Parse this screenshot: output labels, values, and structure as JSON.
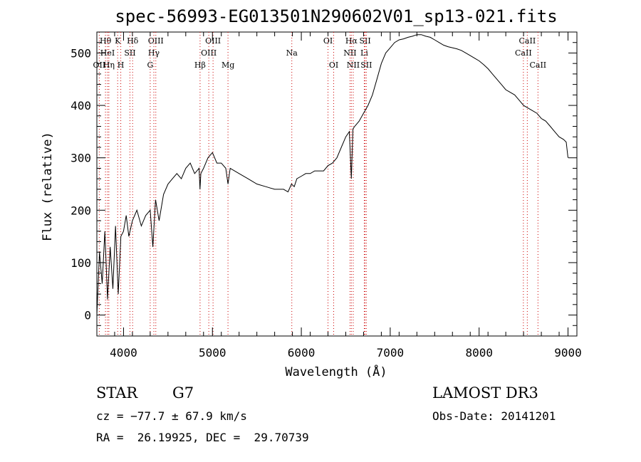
{
  "chart_data": {
    "type": "line",
    "title": "spec-56993-EG013501N290602V01_sp13-021.fits",
    "xlabel": "Wavelength (Å)",
    "ylabel": "Flux (relative)",
    "xlim": [
      3700,
      9100
    ],
    "ylim": [
      -40,
      540
    ],
    "xticks": [
      4000,
      5000,
      6000,
      7000,
      8000,
      9000
    ],
    "yticks": [
      0,
      100,
      200,
      300,
      400,
      500
    ],
    "xtick_labels": [
      "4000",
      "5000",
      "6000",
      "7000",
      "8000",
      "9000"
    ],
    "ytick_labels": [
      "0",
      "100",
      "200",
      "300",
      "400",
      "500"
    ],
    "series": [
      {
        "name": "spectrum",
        "x": [
          3700,
          3730,
          3760,
          3790,
          3820,
          3850,
          3880,
          3910,
          3940,
          3970,
          4000,
          4030,
          4060,
          4100,
          4150,
          4200,
          4250,
          4300,
          4330,
          4360,
          4400,
          4450,
          4500,
          4550,
          4600,
          4650,
          4700,
          4750,
          4800,
          4850,
          4860,
          4870,
          4900,
          4950,
          5000,
          5050,
          5100,
          5150,
          5175,
          5200,
          5300,
          5400,
          5500,
          5600,
          5700,
          5800,
          5850,
          5890,
          5920,
          5950,
          6000,
          6050,
          6100,
          6150,
          6200,
          6250,
          6300,
          6350,
          6400,
          6450,
          6500,
          6540,
          6563,
          6580,
          6600,
          6650,
          6700,
          6750,
          6800,
          6850,
          6900,
          6950,
          7000,
          7050,
          7100,
          7150,
          7200,
          7250,
          7300,
          7350,
          7400,
          7450,
          7500,
          7550,
          7600,
          7650,
          7700,
          7750,
          7800,
          7850,
          7900,
          7950,
          8000,
          8050,
          8100,
          8150,
          8200,
          8250,
          8300,
          8350,
          8400,
          8450,
          8500,
          8550,
          8600,
          8650,
          8700,
          8750,
          8800,
          8850,
          8900,
          8950,
          8980,
          9000
        ],
        "y": [
          0,
          120,
          60,
          160,
          30,
          130,
          50,
          170,
          40,
          150,
          160,
          190,
          150,
          180,
          200,
          170,
          190,
          200,
          130,
          220,
          180,
          230,
          250,
          260,
          270,
          260,
          280,
          290,
          270,
          280,
          240,
          270,
          280,
          300,
          310,
          290,
          290,
          280,
          250,
          280,
          270,
          260,
          250,
          245,
          240,
          240,
          235,
          250,
          245,
          260,
          265,
          270,
          270,
          275,
          275,
          275,
          285,
          290,
          300,
          320,
          340,
          350,
          260,
          355,
          360,
          370,
          385,
          400,
          420,
          450,
          480,
          500,
          510,
          520,
          525,
          527,
          530,
          532,
          535,
          535,
          532,
          530,
          525,
          520,
          515,
          512,
          510,
          508,
          505,
          500,
          495,
          490,
          485,
          478,
          470,
          460,
          450,
          440,
          430,
          425,
          420,
          410,
          400,
          395,
          390,
          385,
          375,
          370,
          360,
          350,
          340,
          335,
          330,
          300
        ]
      }
    ],
    "lines": [
      {
        "label": "Hθ",
        "x": 3797,
        "row": 1
      },
      {
        "label": "OII",
        "x": 3727,
        "row": 3
      },
      {
        "label": "HeI",
        "x": 3820,
        "row": 2
      },
      {
        "label": "Hη",
        "x": 3835,
        "row": 3
      },
      {
        "label": "K",
        "x": 3934,
        "row": 1
      },
      {
        "label": "H",
        "x": 3969,
        "row": 3
      },
      {
        "label": "SII",
        "x": 4072,
        "row": 2
      },
      {
        "label": "Hδ",
        "x": 4102,
        "row": 1
      },
      {
        "label": "OIII",
        "x": 4363,
        "row": 1
      },
      {
        "label": "Hγ",
        "x": 4341,
        "row": 2
      },
      {
        "label": "G",
        "x": 4300,
        "row": 3
      },
      {
        "label": "OIII",
        "x": 5007,
        "row": 1
      },
      {
        "label": "OIII",
        "x": 4959,
        "row": 2
      },
      {
        "label": "Hβ",
        "x": 4861,
        "row": 3
      },
      {
        "label": "Mg",
        "x": 5175,
        "row": 3
      },
      {
        "label": "Na",
        "x": 5893,
        "row": 2
      },
      {
        "label": "OI",
        "x": 6300,
        "row": 1
      },
      {
        "label": "OI",
        "x": 6364,
        "row": 3
      },
      {
        "label": "Hα",
        "x": 6563,
        "row": 1
      },
      {
        "label": "NII",
        "x": 6548,
        "row": 2
      },
      {
        "label": "NII",
        "x": 6584,
        "row": 3
      },
      {
        "label": "SII",
        "x": 6717,
        "row": 1
      },
      {
        "label": "Li",
        "x": 6708,
        "row": 2
      },
      {
        "label": "SII",
        "x": 6731,
        "row": 3
      },
      {
        "label": "CaII",
        "x": 8542,
        "row": 1
      },
      {
        "label": "CaII",
        "x": 8498,
        "row": 2
      },
      {
        "label": "CaII",
        "x": 8662,
        "row": 3
      }
    ]
  },
  "info": {
    "class": "STAR",
    "subclass": "G7",
    "survey": "LAMOST DR3",
    "cz": "cz = −77.7 ± 67.9 km/s",
    "obs_date": "Obs-Date: 20141201",
    "radec": "RA =  26.19925, DEC =  29.70739"
  },
  "colors": {
    "line_marker": "#cc0000",
    "axis": "#000000",
    "spectrum": "#000000"
  }
}
